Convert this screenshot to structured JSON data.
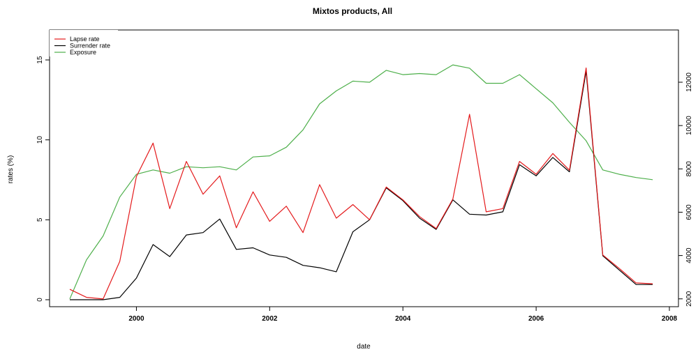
{
  "chart_data": {
    "type": "line",
    "title": "Mixtos products, All",
    "xlabel": "date",
    "ylabel": "rates (%)",
    "y2label": "",
    "x_unit": "year",
    "xlim": [
      1999.0,
      2008.0
    ],
    "ylim_left": [
      0,
      16.5
    ],
    "ylim_right": [
      1960,
      12900
    ],
    "x_ticks": [
      2000,
      2002,
      2004,
      2006,
      2008
    ],
    "x_tick_labels": [
      "2000",
      "2002",
      "2004",
      "2006",
      "2008"
    ],
    "y_left_ticks": [
      0,
      5,
      10,
      15
    ],
    "y_left_tick_labels": [
      "0",
      "5",
      "10",
      "15"
    ],
    "y_right_ticks": [
      2000,
      4000,
      6000,
      8000,
      10000,
      12000
    ],
    "y_right_tick_labels": [
      "2000",
      "4000",
      "6000",
      "8000",
      "10000",
      "12000"
    ],
    "grid": false,
    "legend_position": "top-left",
    "x": [
      1999.0,
      1999.25,
      1999.5,
      1999.75,
      2000.0,
      2000.25,
      2000.5,
      2000.75,
      2001.0,
      2001.25,
      2001.5,
      2001.75,
      2002.0,
      2002.25,
      2002.5,
      2002.75,
      2003.0,
      2003.25,
      2003.5,
      2003.75,
      2004.0,
      2004.25,
      2004.5,
      2004.75,
      2005.0,
      2005.25,
      2005.5,
      2005.75,
      2006.0,
      2006.25,
      2006.5,
      2006.75,
      2007.0,
      2007.25,
      2007.5,
      2007.75
    ],
    "series": [
      {
        "name": "Lapse rate",
        "color": "#e41a1c",
        "axis": "left",
        "values": [
          0.65,
          0.15,
          0.05,
          2.4,
          7.7,
          9.8,
          5.7,
          8.65,
          6.6,
          7.75,
          4.5,
          6.75,
          4.9,
          5.85,
          4.2,
          7.2,
          5.1,
          5.95,
          5.0,
          7.05,
          6.25,
          5.2,
          4.45,
          6.3,
          11.6,
          5.5,
          5.7,
          8.65,
          7.85,
          9.15,
          8.1,
          14.5,
          2.8,
          1.95,
          1.05,
          1.0
        ]
      },
      {
        "name": "Surrender rate",
        "color": "#000000",
        "axis": "left",
        "values": [
          0.0,
          0.0,
          0.0,
          0.15,
          1.35,
          3.45,
          2.7,
          4.05,
          4.2,
          5.05,
          3.15,
          3.25,
          2.8,
          2.65,
          2.15,
          2.0,
          1.75,
          4.25,
          5.0,
          7.0,
          6.2,
          5.1,
          4.4,
          6.25,
          5.35,
          5.3,
          5.5,
          8.45,
          7.75,
          8.9,
          8.0,
          14.3,
          2.75,
          1.85,
          0.95,
          0.95
        ]
      },
      {
        "name": "Exposure",
        "color": "#4daf4a",
        "axis": "right",
        "values": [
          2000,
          3800,
          4900,
          6700,
          7750,
          7950,
          7800,
          8100,
          8050,
          8100,
          7950,
          8550,
          8600,
          9000,
          9800,
          11000,
          11600,
          12050,
          12000,
          12550,
          12350,
          12400,
          12350,
          12800,
          12650,
          11950,
          11950,
          12350,
          11700,
          11050,
          10150,
          9300,
          7950,
          7750,
          7600,
          7500
        ]
      }
    ]
  }
}
